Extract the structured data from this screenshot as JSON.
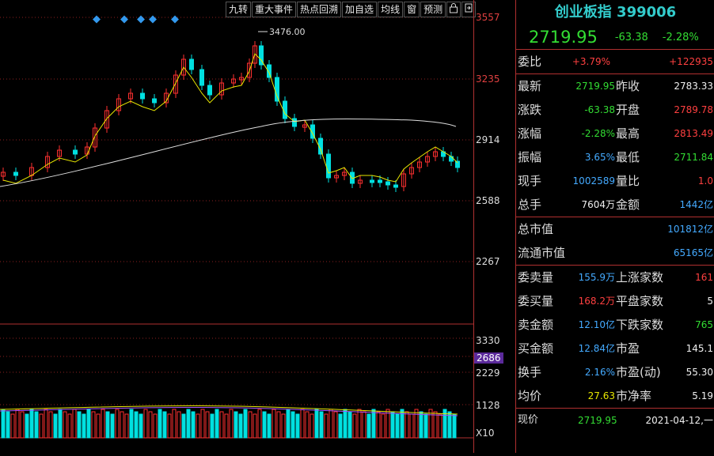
{
  "toolbar": {
    "items": [
      "九转",
      "重大事件",
      "热点回溯",
      "加自选",
      "均线",
      "窗",
      "预测"
    ]
  },
  "price_axis": {
    "labels": [
      "3557",
      "3235",
      "2914",
      "2588",
      "2267"
    ]
  },
  "volume_axis": {
    "labels": [
      "3330",
      "2686",
      "2229",
      "1128",
      "X10"
    ]
  },
  "chart": {
    "peak_label": "3476.00",
    "colors": {
      "up": "#ff3030",
      "down": "#00e0e0",
      "ma_short": "#e8e800",
      "ma_long": "#dddddd",
      "background": "#000000",
      "grid": "#8b2020"
    }
  },
  "quote": {
    "title": "创业板指 399006",
    "price": "2719.95",
    "change": "-63.38",
    "change_pct": "-2.28%",
    "rows": [
      {
        "l1": "委比",
        "v1": "+3.79%",
        "c1": "red",
        "l2": "",
        "v2": "+122935",
        "c2": "red"
      },
      {
        "l1": "最新",
        "v1": "2719.95",
        "c1": "green",
        "l2": "昨收",
        "v2": "2783.33",
        "c2": "white"
      },
      {
        "l1": "涨跌",
        "v1": "-63.38",
        "c1": "green",
        "l2": "开盘",
        "v2": "2789.78",
        "c2": "red"
      },
      {
        "l1": "涨幅",
        "v1": "-2.28%",
        "c1": "green",
        "l2": "最高",
        "v2": "2813.49",
        "c2": "red"
      },
      {
        "l1": "振幅",
        "v1": "3.65%",
        "c1": "cyan",
        "l2": "最低",
        "v2": "2711.84",
        "c2": "green"
      },
      {
        "l1": "现手",
        "v1": "1002589",
        "c1": "cyan",
        "l2": "量比",
        "v2": "1.0",
        "c2": "red"
      },
      {
        "l1": "总手",
        "v1": "7604万",
        "c1": "white",
        "l2": "金额",
        "v2": "1442亿",
        "c2": "cyan"
      }
    ],
    "market": [
      {
        "label": "总市值",
        "value": "101812亿"
      },
      {
        "label": "流通市值",
        "value": "65165亿"
      }
    ],
    "stats": [
      {
        "l1": "委卖量",
        "v1": "155.9万",
        "c1": "cyan",
        "l2": "上涨家数",
        "v2": "161",
        "c2": "red"
      },
      {
        "l1": "委买量",
        "v1": "168.2万",
        "c1": "red",
        "l2": "平盘家数",
        "v2": "5",
        "c2": "white"
      },
      {
        "l1": "卖金额",
        "v1": "12.10亿",
        "c1": "cyan",
        "l2": "下跌家数",
        "v2": "765",
        "c2": "green"
      },
      {
        "l1": "买金额",
        "v1": "12.84亿",
        "c1": "cyan",
        "l2": "市盈",
        "v2": "145.1",
        "c2": "white"
      },
      {
        "l1": "换手",
        "v1": "2.16%",
        "c1": "cyan",
        "l2": "市盈(动)",
        "v2": "55.30",
        "c2": "white"
      },
      {
        "l1": "均价",
        "v1": "27.63",
        "c1": "yellow",
        "l2": "市净率",
        "v2": "5.19",
        "c2": "white"
      }
    ],
    "bottom": {
      "label": "现价",
      "price": "2719.95",
      "date": "2021-04-12,一"
    }
  }
}
